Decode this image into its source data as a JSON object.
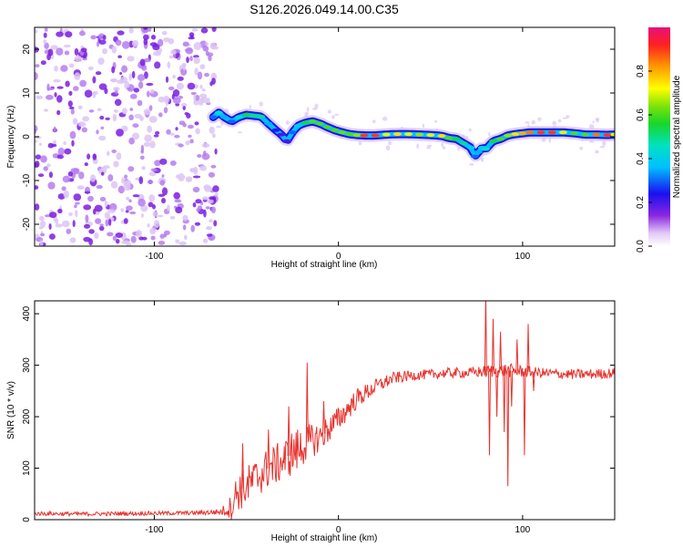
{
  "figure": {
    "title": "S126.2026.049.14.00.C35"
  },
  "chart_data": [
    {
      "type": "heatmap",
      "panel": "spectrogram",
      "xlabel": "Height of straight line (km)",
      "ylabel": "Frequency (Hz)",
      "xlim": [
        -165,
        150
      ],
      "ylim": [
        -25,
        25
      ],
      "xticks": [
        -100,
        0,
        100
      ],
      "yticks": [
        -20,
        -10,
        0,
        10,
        20
      ],
      "noise_region_x": [
        -165,
        -68
      ],
      "ridge": {
        "x": [
          -68,
          -65,
          -62,
          -58,
          -54,
          -50,
          -46,
          -42,
          -38,
          -34,
          -31,
          -28,
          -25,
          -22,
          -18,
          -14,
          -10,
          -6,
          -2,
          2,
          6,
          10,
          14,
          20,
          26,
          32,
          38,
          44,
          50,
          56,
          60,
          64,
          68,
          72,
          74,
          76,
          78,
          80,
          84,
          88,
          92,
          96,
          100,
          104,
          110,
          116,
          122,
          128,
          134,
          140,
          146,
          150
        ],
        "y": [
          4.5,
          5.5,
          4.5,
          3.5,
          4.5,
          5.0,
          4.8,
          4.6,
          3.0,
          1.5,
          0.5,
          -1.0,
          1.0,
          2.5,
          3.2,
          3.5,
          3.0,
          2.2,
          1.5,
          1.0,
          0.6,
          0.4,
          0.3,
          0.3,
          0.5,
          0.6,
          0.6,
          0.5,
          0.4,
          0.2,
          -0.3,
          -0.5,
          -1.5,
          -2.5,
          -4.5,
          -3.5,
          -2.5,
          -2.8,
          -1.0,
          -0.5,
          0.3,
          0.6,
          0.8,
          1.0,
          1.0,
          1.0,
          1.0,
          0.8,
          0.5,
          0.5,
          0.4,
          0.5
        ],
        "amplitude": [
          0.3,
          0.45,
          0.35,
          0.3,
          0.45,
          0.55,
          0.5,
          0.5,
          0.35,
          0.25,
          0.2,
          0.2,
          0.3,
          0.4,
          0.55,
          0.6,
          0.6,
          0.6,
          0.6,
          0.62,
          0.6,
          0.65,
          0.9,
          0.9,
          0.7,
          0.75,
          0.7,
          0.65,
          0.7,
          0.75,
          0.6,
          0.55,
          0.5,
          0.4,
          0.3,
          0.35,
          0.4,
          0.45,
          0.55,
          0.6,
          0.65,
          0.75,
          0.8,
          0.85,
          0.9,
          0.9,
          0.7,
          0.6,
          0.6,
          0.85,
          0.9,
          0.7
        ]
      },
      "colorbar": {
        "label": "Normalized spectral amplitude",
        "range": [
          0,
          1
        ],
        "ticks": [
          "0.0",
          "0.2",
          "0.4",
          "0.6",
          "0.8"
        ]
      }
    },
    {
      "type": "line",
      "panel": "snr",
      "xlabel": "Height of straight line (km)",
      "ylabel": "SNR (10 * v/v)",
      "xlim": [
        -165,
        150
      ],
      "ylim": [
        0,
        425
      ],
      "xticks": [
        -100,
        0,
        100
      ],
      "yticks": [
        0,
        100,
        200,
        300,
        400
      ],
      "series": [
        {
          "name": "SNR",
          "color": "#e8322d",
          "x": [
            -165,
            -140,
            -110,
            -80,
            -64,
            -58,
            -55,
            -52,
            -48,
            -40,
            -30,
            -25,
            -22,
            -17,
            -10,
            0,
            10,
            20,
            30,
            40,
            50,
            60,
            70,
            80,
            90,
            100,
            110,
            120,
            130,
            140,
            150
          ],
          "y": [
            12,
            11,
            12,
            13,
            15,
            25,
            55,
            60,
            70,
            95,
            115,
            130,
            135,
            150,
            160,
            195,
            235,
            258,
            275,
            280,
            282,
            285,
            285,
            288,
            290,
            288,
            285,
            283,
            282,
            283,
            285
          ],
          "noise": [
            4,
            4,
            4,
            4,
            6,
            25,
            40,
            40,
            40,
            40,
            40,
            45,
            45,
            35,
            30,
            25,
            20,
            15,
            12,
            10,
            10,
            10,
            10,
            12,
            14,
            12,
            10,
            10,
            10,
            10,
            10
          ]
        }
      ],
      "spikes": [
        {
          "x": -52,
          "y": 148
        },
        {
          "x": -38,
          "y": 175
        },
        {
          "x": -27,
          "y": 220
        },
        {
          "x": -17,
          "y": 305
        },
        {
          "x": -8,
          "y": 230
        },
        {
          "x": 80,
          "y": 440
        },
        {
          "x": 82,
          "y": 125
        },
        {
          "x": 84,
          "y": 390
        },
        {
          "x": 86,
          "y": 200
        },
        {
          "x": 88,
          "y": 365
        },
        {
          "x": 90,
          "y": 170
        },
        {
          "x": 92,
          "y": 65
        },
        {
          "x": 94,
          "y": 220
        },
        {
          "x": 97,
          "y": 350
        },
        {
          "x": 101,
          "y": 125
        },
        {
          "x": 103,
          "y": 380
        },
        {
          "x": 106,
          "y": 250
        }
      ]
    }
  ]
}
